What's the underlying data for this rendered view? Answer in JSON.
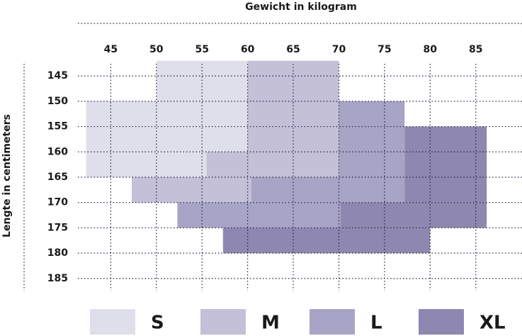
{
  "chart_data": {
    "type": "range-grid",
    "xlabel": "Gewicht in kilogram",
    "ylabel": "Lengte in centimeters",
    "xlim": [
      41.4,
      90.3
    ],
    "ylim": [
      142.6,
      187.4
    ],
    "xticks": [
      45,
      50,
      55,
      60,
      65,
      70,
      75,
      80,
      85
    ],
    "yticks": [
      145,
      150,
      155,
      160,
      165,
      170,
      175,
      180,
      185
    ],
    "grid": true,
    "series": [
      {
        "name": "S",
        "color": "#dfdfeb",
        "regions": [
          {
            "x": [
              50,
              60
            ],
            "y": [
              142,
              150
            ]
          },
          {
            "x": [
              42.3,
              60
            ],
            "y": [
              150,
              160
            ]
          },
          {
            "x": [
              42.3,
              55.5
            ],
            "y": [
              160,
              165
            ]
          }
        ]
      },
      {
        "name": "M",
        "color": "#c3c0d8",
        "regions": [
          {
            "x": [
              60,
              70
            ],
            "y": [
              142,
              165
            ]
          },
          {
            "x": [
              55.5,
              60
            ],
            "y": [
              160,
              165
            ]
          },
          {
            "x": [
              47.3,
              60.4
            ],
            "y": [
              165,
              170
            ]
          }
        ]
      },
      {
        "name": "L",
        "color": "#a8a4c6",
        "regions": [
          {
            "x": [
              70,
              77.2
            ],
            "y": [
              150,
              170
            ]
          },
          {
            "x": [
              60.4,
              70
            ],
            "y": [
              165,
              170
            ]
          },
          {
            "x": [
              52.3,
              70.2
            ],
            "y": [
              170,
              175
            ]
          }
        ]
      },
      {
        "name": "XL",
        "color": "#8e88b0",
        "regions": [
          {
            "x": [
              77.2,
              86.2
            ],
            "y": [
              155,
              170
            ]
          },
          {
            "x": [
              70.2,
              86.2
            ],
            "y": [
              170,
              175
            ]
          },
          {
            "x": [
              57.3,
              80
            ],
            "y": [
              175,
              180
            ]
          }
        ]
      }
    ]
  }
}
